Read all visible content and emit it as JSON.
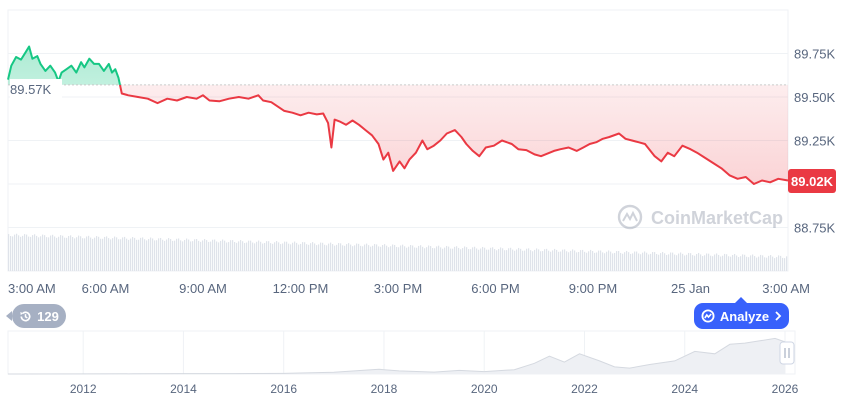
{
  "chart_data": [
    {
      "type": "area",
      "title": "",
      "xlabel": "",
      "ylabel": "",
      "x_ticks": [
        "3:00 AM",
        "6:00 AM",
        "9:00 AM",
        "12:00 PM",
        "3:00 PM",
        "6:00 PM",
        "9:00 PM",
        "25 Jan",
        "3:00 AM"
      ],
      "y_ticks": [
        "88.75K",
        "89.00K",
        "89.25K",
        "89.50K",
        "89.75K"
      ],
      "y_tick_values": [
        88750,
        89000,
        89250,
        89500,
        89750
      ],
      "ylim": [
        88500,
        90000
      ],
      "xlim_hours": [
        0,
        24
      ],
      "reference_value": 89570,
      "reference_label": "89.57K",
      "current_value": 89020,
      "current_label": "89.02K",
      "series": [
        {
          "points": [
            [
              0.0,
              89600
            ],
            [
              0.1,
              89680
            ],
            [
              0.25,
              89730
            ],
            [
              0.4,
              89715
            ],
            [
              0.55,
              89760
            ],
            [
              0.65,
              89790
            ],
            [
              0.75,
              89720
            ],
            [
              0.9,
              89735
            ],
            [
              1.0,
              89690
            ],
            [
              1.15,
              89650
            ],
            [
              1.3,
              89680
            ],
            [
              1.45,
              89640
            ],
            [
              1.55,
              89590
            ],
            [
              1.65,
              89640
            ],
            [
              1.8,
              89660
            ],
            [
              1.95,
              89680
            ],
            [
              2.1,
              89640
            ],
            [
              2.25,
              89700
            ],
            [
              2.35,
              89670
            ],
            [
              2.5,
              89720
            ],
            [
              2.65,
              89690
            ],
            [
              2.8,
              89690
            ],
            [
              2.95,
              89650
            ],
            [
              3.1,
              89690
            ],
            [
              3.2,
              89640
            ],
            [
              3.3,
              89660
            ],
            [
              3.4,
              89610
            ],
            [
              3.5,
              89520
            ],
            [
              3.7,
              89510
            ],
            [
              4.0,
              89500
            ],
            [
              4.3,
              89490
            ],
            [
              4.6,
              89465
            ],
            [
              4.9,
              89490
            ],
            [
              5.2,
              89480
            ],
            [
              5.5,
              89500
            ],
            [
              5.8,
              89490
            ],
            [
              6.0,
              89510
            ],
            [
              6.2,
              89480
            ],
            [
              6.5,
              89475
            ],
            [
              6.8,
              89490
            ],
            [
              7.1,
              89500
            ],
            [
              7.4,
              89490
            ],
            [
              7.7,
              89510
            ],
            [
              7.85,
              89480
            ],
            [
              8.1,
              89470
            ],
            [
              8.3,
              89445
            ],
            [
              8.5,
              89420
            ],
            [
              8.75,
              89410
            ],
            [
              9.0,
              89395
            ],
            [
              9.25,
              89410
            ],
            [
              9.5,
              89400
            ],
            [
              9.7,
              89405
            ],
            [
              9.85,
              89350
            ],
            [
              9.95,
              89210
            ],
            [
              10.05,
              89370
            ],
            [
              10.2,
              89360
            ],
            [
              10.4,
              89340
            ],
            [
              10.6,
              89365
            ],
            [
              10.8,
              89340
            ],
            [
              11.0,
              89310
            ],
            [
              11.2,
              89280
            ],
            [
              11.4,
              89230
            ],
            [
              11.55,
              89140
            ],
            [
              11.7,
              89180
            ],
            [
              11.85,
              89075
            ],
            [
              12.05,
              89130
            ],
            [
              12.2,
              89090
            ],
            [
              12.35,
              89140
            ],
            [
              12.55,
              89180
            ],
            [
              12.75,
              89250
            ],
            [
              12.9,
              89200
            ],
            [
              13.1,
              89220
            ],
            [
              13.3,
              89250
            ],
            [
              13.5,
              89290
            ],
            [
              13.75,
              89310
            ],
            [
              13.95,
              89270
            ],
            [
              14.1,
              89230
            ],
            [
              14.3,
              89190
            ],
            [
              14.5,
              89160
            ],
            [
              14.7,
              89210
            ],
            [
              14.95,
              89220
            ],
            [
              15.2,
              89250
            ],
            [
              15.5,
              89230
            ],
            [
              15.7,
              89200
            ],
            [
              15.95,
              89195
            ],
            [
              16.2,
              89170
            ],
            [
              16.4,
              89160
            ],
            [
              16.6,
              89175
            ],
            [
              16.8,
              89190
            ],
            [
              17.0,
              89200
            ],
            [
              17.25,
              89210
            ],
            [
              17.5,
              89190
            ],
            [
              17.7,
              89210
            ],
            [
              17.9,
              89230
            ],
            [
              18.1,
              89240
            ],
            [
              18.3,
              89260
            ],
            [
              18.5,
              89270
            ],
            [
              18.8,
              89290
            ],
            [
              19.0,
              89260
            ],
            [
              19.2,
              89250
            ],
            [
              19.4,
              89240
            ],
            [
              19.6,
              89230
            ],
            [
              19.9,
              89160
            ],
            [
              20.1,
              89130
            ],
            [
              20.3,
              89180
            ],
            [
              20.5,
              89160
            ],
            [
              20.75,
              89220
            ],
            [
              21.0,
              89200
            ],
            [
              21.2,
              89180
            ],
            [
              21.45,
              89150
            ],
            [
              21.7,
              89120
            ],
            [
              21.95,
              89090
            ],
            [
              22.2,
              89050
            ],
            [
              22.45,
              89030
            ],
            [
              22.7,
              89040
            ],
            [
              22.95,
              89000
            ],
            [
              23.2,
              89020
            ],
            [
              23.45,
              89010
            ],
            [
              23.7,
              89030
            ],
            [
              24.0,
              89020
            ]
          ]
        }
      ],
      "colors": {
        "up": "#16c784",
        "down": "#ea3943",
        "axis_text": "#58667e",
        "grid": "#eff2f5"
      }
    },
    {
      "type": "area",
      "title": "",
      "x_ticks": [
        "2012",
        "2014",
        "2016",
        "2018",
        "2020",
        "2022",
        "2024",
        "2026"
      ],
      "series": [
        {
          "points": [
            [
              2010.5,
              0
            ],
            [
              2012.0,
              0.1
            ],
            [
              2013.0,
              0.2
            ],
            [
              2014.0,
              0.3
            ],
            [
              2015.0,
              0.3
            ],
            [
              2016.0,
              0.5
            ],
            [
              2017.0,
              1.5
            ],
            [
              2017.9,
              4.0
            ],
            [
              2018.3,
              2.6
            ],
            [
              2019.0,
              1.6
            ],
            [
              2019.5,
              3.0
            ],
            [
              2020.0,
              2.0
            ],
            [
              2020.6,
              3.6
            ],
            [
              2021.0,
              9.0
            ],
            [
              2021.3,
              15.0
            ],
            [
              2021.6,
              10.0
            ],
            [
              2021.9,
              17.0
            ],
            [
              2022.3,
              11.0
            ],
            [
              2022.6,
              6.0
            ],
            [
              2022.9,
              5.0
            ],
            [
              2023.3,
              8.0
            ],
            [
              2023.8,
              11.0
            ],
            [
              2024.2,
              19.0
            ],
            [
              2024.6,
              17.0
            ],
            [
              2024.9,
              25.0
            ],
            [
              2025.2,
              26.0
            ],
            [
              2025.5,
              28.0
            ],
            [
              2025.8,
              30.0
            ],
            [
              2026.0,
              27.0
            ]
          ]
        }
      ],
      "colors": {
        "fill": "#eef0f4",
        "line": "#d5d9e0"
      }
    }
  ],
  "pills": {
    "history_count": "129",
    "analyze_label": "Analyze",
    "current_price": "89.02K",
    "open_price": "89.57K"
  },
  "watermark": {
    "brand": "CoinMarketCap"
  },
  "icons": {
    "history": "history-icon",
    "analyze": "analyze-icon",
    "chevron": "chevron-right-icon",
    "pause": "pause-icon",
    "logo": "coinmarketcap-logo-icon"
  }
}
